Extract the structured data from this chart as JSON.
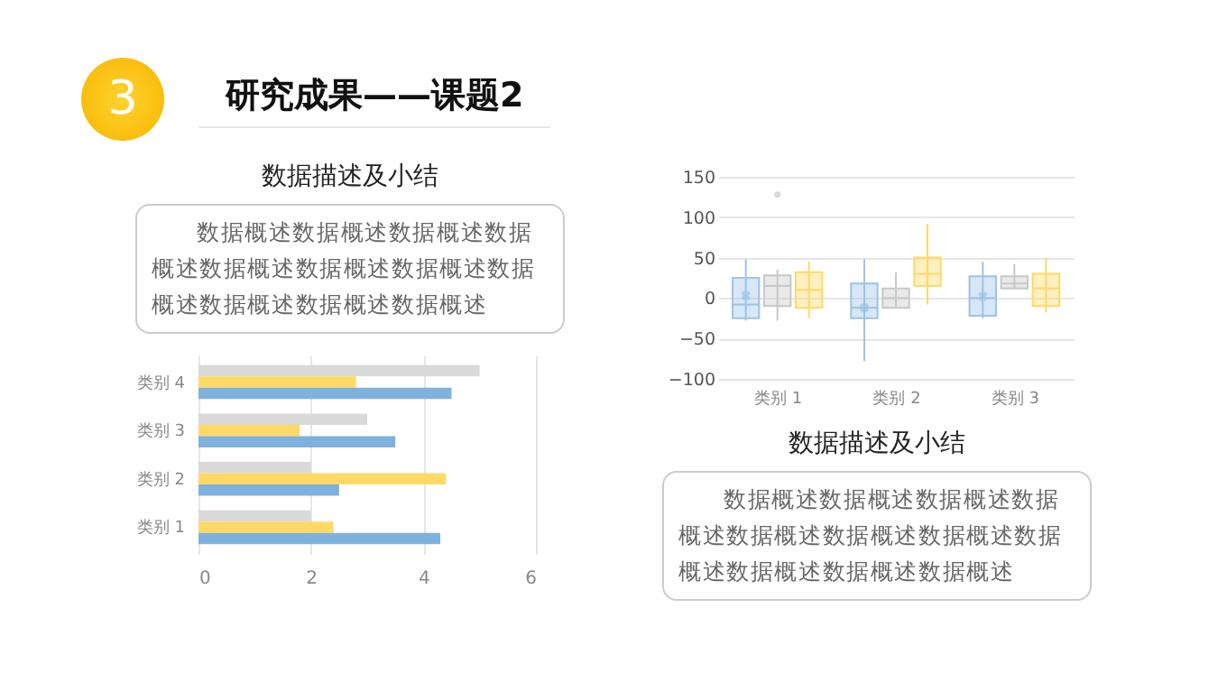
{
  "chart_data": [
    {
      "type": "other",
      "title": "研究成果——课题2",
      "annotations": [
        "3"
      ]
    },
    {
      "type": "other",
      "title": "数据描述及小结",
      "annotations": [
        "数据概述数据概述数据概述数据概述数据概述数据概述数据概述数据概述数据概述数据概述数据概述"
      ]
    },
    {
      "type": "bar",
      "orientation": "horizontal",
      "categories": [
        "类别 4",
        "类别 3",
        "类别 2",
        "类别 1"
      ],
      "xlim": [
        0,
        6
      ],
      "xticks": [
        0,
        2,
        4,
        6
      ],
      "grid": "x",
      "series": [
        {
          "color": "#d9d9d9",
          "values": [
            5.0,
            3.0,
            2.0,
            2.0
          ]
        },
        {
          "color": "#ffd966",
          "values": [
            2.8,
            1.8,
            4.4,
            2.4
          ]
        },
        {
          "color": "#7eb2dd",
          "values": [
            4.5,
            3.5,
            2.5,
            4.3
          ]
        }
      ]
    },
    {
      "type": "box",
      "categories": [
        "类别 1",
        "类别 2",
        "类别 3"
      ],
      "ylim": [
        -100,
        150
      ],
      "yticks": [
        -100,
        -50,
        0,
        50,
        100,
        150
      ],
      "grid": "y",
      "series": [
        {
          "color": "#9dc3e6",
          "boxes": [
            {
              "low": -28,
              "q1": -25,
              "median": -8,
              "q3": 25,
              "high": 48,
              "mean": 3
            },
            {
              "low": -78,
              "q1": -25,
              "median": -12,
              "q3": 18,
              "high": 48,
              "mean": -12
            },
            {
              "low": -25,
              "q1": -22,
              "median": 0,
              "q3": 27,
              "high": 45,
              "mean": 2
            }
          ]
        },
        {
          "color": "#c8c8c8",
          "boxes": [
            {
              "low": -28,
              "q1": -10,
              "median": 15,
              "q3": 28,
              "high": 35,
              "outliers": [
                128
              ]
            },
            {
              "low": -12,
              "q1": -12,
              "median": 0,
              "q3": 12,
              "high": 32
            },
            {
              "low": 12,
              "q1": 12,
              "median": 18,
              "q3": 27,
              "high": 42
            }
          ]
        },
        {
          "color": "#ffd966",
          "boxes": [
            {
              "low": -25,
              "q1": -12,
              "median": 10,
              "q3": 32,
              "high": 45
            },
            {
              "low": -8,
              "q1": 15,
              "median": 30,
              "q3": 50,
              "high": 92
            },
            {
              "low": -18,
              "q1": -10,
              "median": 12,
              "q3": 30,
              "high": 50
            }
          ]
        }
      ]
    },
    {
      "type": "other",
      "title": "数据描述及小结",
      "annotations": [
        "数据概述数据概述数据概述数据概述数据概述数据概述数据概述数据概述数据概述数据概述数据概述"
      ]
    }
  ]
}
